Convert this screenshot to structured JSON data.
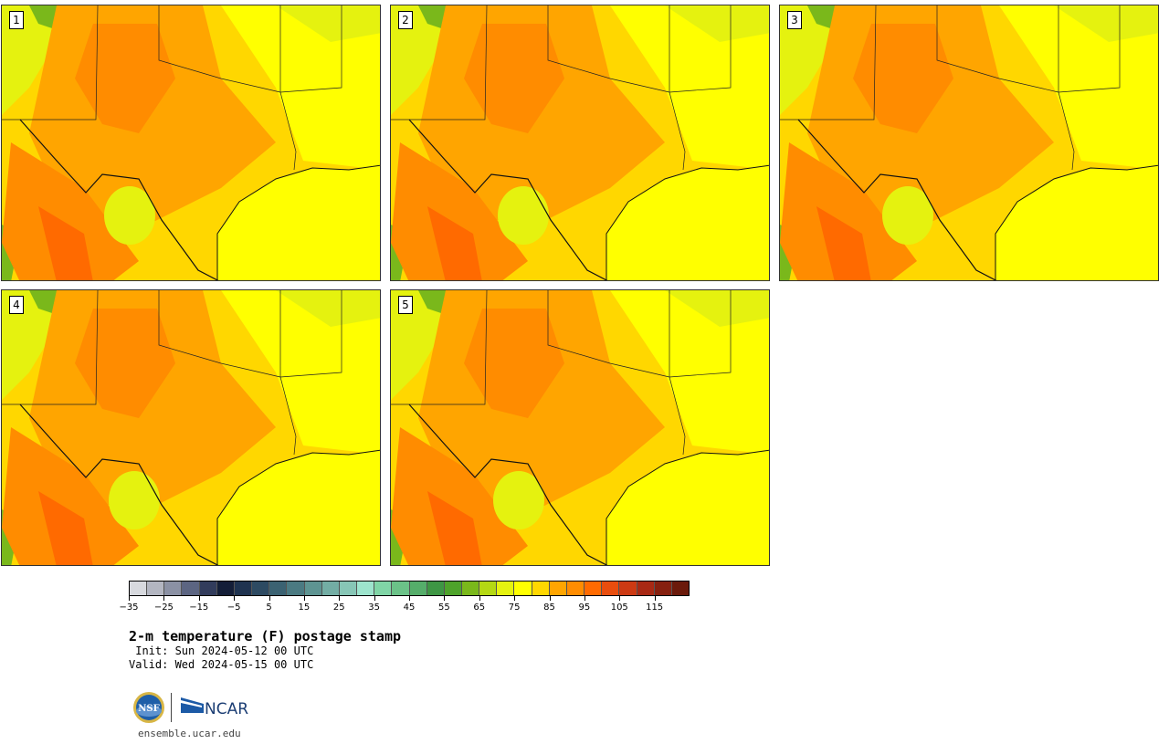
{
  "figure": {
    "title": "2-m temperature (F) postage stamp",
    "init_label": " Init: Sun 2024-05-12 00 UTC",
    "valid_label": "Valid: Wed 2024-05-15 00 UTC",
    "url": "ensemble.ucar.edu"
  },
  "members": [
    {
      "label": "1"
    },
    {
      "label": "2"
    },
    {
      "label": "3"
    },
    {
      "label": "4"
    },
    {
      "label": "5"
    }
  ],
  "colorbar": {
    "colors": [
      "#d7d9de",
      "#b3b6c1",
      "#8b91a4",
      "#5c6582",
      "#323c5c",
      "#141e38",
      "#1f3350",
      "#2d4a62",
      "#3b6272",
      "#4b7a82",
      "#5e9492",
      "#73ada4",
      "#87c6b6",
      "#9de4cd",
      "#80d5a6",
      "#6bc288",
      "#55ad6a",
      "#3e9644",
      "#4ea32b",
      "#7ab81b",
      "#b4d813",
      "#e5f20f",
      "#ffff00",
      "#ffd700",
      "#ffa500",
      "#ff8c00",
      "#ff6a00",
      "#e84d0e",
      "#cd3a13",
      "#a82914",
      "#86200f",
      "#6b1a0b"
    ],
    "ticks": [
      "−35",
      "−25",
      "−15",
      "−5",
      "5",
      "15",
      "25",
      "35",
      "45",
      "55",
      "65",
      "75",
      "85",
      "95",
      "105",
      "115"
    ]
  },
  "palette": {
    "ocean": "#ffff00",
    "cool_land": "#e5f20f",
    "warm": "#ffd700",
    "warmer": "#ffa500",
    "hot": "#ff8c00",
    "hotter": "#ff6a00",
    "mountain": "#7ab81b"
  },
  "logos": {
    "nsf_text": "NSF",
    "ncar_text": "NCAR"
  }
}
